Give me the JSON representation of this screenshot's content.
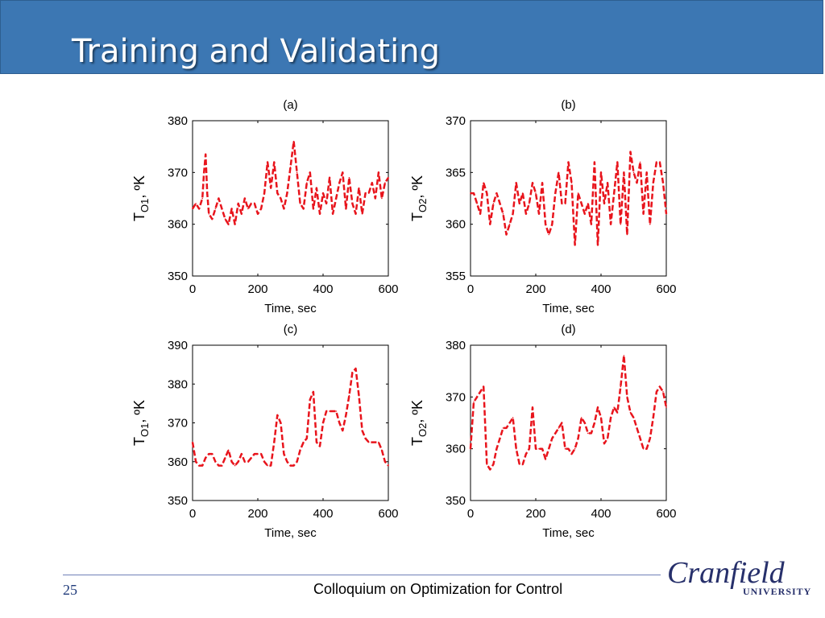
{
  "slide": {
    "title": "Training and Validating",
    "page_number": "25",
    "footer_text": "Colloquium on Optimization for Control",
    "logo": {
      "main": "Cranfield",
      "sub": "UNIVERSITY"
    },
    "colors": {
      "title_bar": "#3c77b3",
      "series_line": "#e8141c",
      "logo": "#27306b"
    }
  },
  "chart_data": [
    {
      "type": "line",
      "title": "(a)",
      "xlabel": "Time, sec",
      "ylabel": {
        "base": "T",
        "sub": "O1",
        "suffix": ", ºK"
      },
      "xlim": [
        0,
        600
      ],
      "ylim": [
        350,
        380
      ],
      "xticks": [
        0,
        200,
        400,
        600
      ],
      "yticks": [
        350,
        360,
        370,
        380
      ],
      "grid": false,
      "series": [
        {
          "style": "dashed",
          "color": "#e8141c",
          "x": [
            0,
            10,
            20,
            30,
            35,
            40,
            45,
            50,
            60,
            70,
            80,
            90,
            100,
            110,
            120,
            130,
            140,
            150,
            160,
            170,
            180,
            190,
            200,
            210,
            220,
            230,
            240,
            250,
            260,
            270,
            280,
            290,
            300,
            310,
            320,
            330,
            340,
            350,
            360,
            370,
            380,
            390,
            400,
            410,
            420,
            430,
            440,
            450,
            460,
            470,
            480,
            490,
            500,
            510,
            520,
            530,
            540,
            550,
            560,
            570,
            580,
            590,
            600
          ],
          "y": [
            363,
            364,
            363,
            365,
            370,
            373.5,
            366,
            362,
            361,
            363,
            365,
            363,
            361,
            360,
            363,
            360,
            364,
            362,
            365,
            363,
            364,
            364,
            362,
            363,
            366,
            372,
            367,
            372,
            366,
            365,
            363,
            366,
            371,
            376,
            370,
            364,
            363,
            368,
            370,
            363,
            367,
            362,
            366,
            364,
            369,
            362,
            365,
            368,
            370,
            363,
            369,
            364,
            362,
            367,
            362,
            366,
            366,
            368,
            365,
            370,
            365,
            368,
            369
          ]
        }
      ]
    },
    {
      "type": "line",
      "title": "(b)",
      "xlabel": "Time, sec",
      "ylabel": {
        "base": "T",
        "sub": "O2",
        "suffix": ", ºK"
      },
      "xlim": [
        0,
        600
      ],
      "ylim": [
        355,
        370
      ],
      "xticks": [
        0,
        200,
        400,
        600
      ],
      "yticks": [
        355,
        360,
        365,
        370
      ],
      "grid": false,
      "series": [
        {
          "style": "dashed",
          "color": "#e8141c",
          "x": [
            0,
            10,
            20,
            30,
            40,
            50,
            60,
            70,
            80,
            90,
            100,
            110,
            120,
            130,
            140,
            150,
            160,
            170,
            180,
            190,
            200,
            210,
            220,
            230,
            240,
            250,
            260,
            270,
            280,
            290,
            300,
            310,
            320,
            330,
            340,
            350,
            360,
            370,
            380,
            390,
            400,
            410,
            420,
            430,
            440,
            450,
            460,
            470,
            480,
            490,
            500,
            510,
            520,
            530,
            540,
            550,
            560,
            570,
            580,
            590,
            600
          ],
          "y": [
            363,
            363,
            362,
            361,
            364,
            363,
            360,
            362,
            363,
            362,
            361,
            359,
            360,
            361,
            364,
            362,
            363,
            361,
            362,
            364,
            363,
            361,
            364,
            360,
            359,
            360,
            363,
            365,
            362,
            362,
            366,
            364,
            358,
            363,
            362,
            361,
            362,
            360,
            366,
            358,
            365,
            362,
            364,
            360,
            363,
            366,
            360,
            365,
            359,
            367,
            365,
            364,
            366,
            361,
            365,
            360,
            364,
            366,
            366,
            364,
            361
          ]
        }
      ]
    },
    {
      "type": "line",
      "title": "(c)",
      "xlabel": "Time, sec",
      "ylabel": {
        "base": "T",
        "sub": "O1",
        "suffix": ", ºK"
      },
      "xlim": [
        0,
        600
      ],
      "ylim": [
        350,
        390
      ],
      "xticks": [
        0,
        200,
        400,
        600
      ],
      "yticks": [
        350,
        360,
        370,
        380,
        390
      ],
      "grid": false,
      "series": [
        {
          "style": "dashed",
          "color": "#e8141c",
          "x": [
            0,
            10,
            20,
            30,
            40,
            50,
            60,
            70,
            80,
            90,
            100,
            110,
            120,
            130,
            140,
            150,
            160,
            170,
            180,
            190,
            200,
            210,
            220,
            230,
            240,
            250,
            260,
            270,
            280,
            290,
            300,
            310,
            320,
            330,
            340,
            350,
            360,
            370,
            380,
            390,
            400,
            410,
            420,
            430,
            440,
            450,
            460,
            470,
            480,
            490,
            500,
            510,
            520,
            530,
            540,
            550,
            560,
            570,
            580,
            590,
            600
          ],
          "y": [
            365,
            360,
            359,
            359,
            361,
            362,
            362,
            360,
            359,
            359,
            361,
            363,
            360,
            359,
            360,
            362,
            360,
            360,
            361,
            362,
            362,
            362,
            360,
            359,
            359,
            365,
            372,
            370,
            362,
            360,
            359,
            359,
            360,
            363,
            365,
            366,
            376,
            378,
            365,
            364,
            370,
            373,
            373,
            373,
            373,
            370,
            368,
            372,
            377,
            383,
            384,
            377,
            368,
            366,
            365,
            365,
            365,
            365,
            363,
            360,
            359
          ]
        }
      ]
    },
    {
      "type": "line",
      "title": "(d)",
      "xlabel": "Time, sec",
      "ylabel": {
        "base": "T",
        "sub": "O2",
        "suffix": ", ºK"
      },
      "xlim": [
        0,
        600
      ],
      "ylim": [
        350,
        380
      ],
      "xticks": [
        0,
        200,
        400,
        600
      ],
      "yticks": [
        350,
        360,
        370,
        380
      ],
      "grid": false,
      "series": [
        {
          "style": "dashed",
          "color": "#e8141c",
          "x": [
            0,
            10,
            20,
            30,
            40,
            50,
            60,
            70,
            80,
            90,
            100,
            110,
            120,
            130,
            140,
            150,
            160,
            170,
            180,
            190,
            200,
            210,
            220,
            230,
            240,
            250,
            260,
            270,
            280,
            290,
            300,
            310,
            320,
            330,
            340,
            350,
            360,
            370,
            380,
            390,
            400,
            410,
            420,
            430,
            440,
            450,
            460,
            470,
            480,
            490,
            500,
            510,
            520,
            530,
            540,
            550,
            560,
            570,
            580,
            590,
            600
          ],
          "y": [
            360,
            369,
            370,
            371,
            372,
            357,
            356,
            357,
            360,
            362,
            364,
            364,
            365,
            366,
            360,
            357,
            357,
            359,
            360,
            368,
            360,
            360,
            360,
            358,
            360,
            362,
            363,
            364,
            365,
            360,
            360,
            359,
            360,
            362,
            366,
            365,
            363,
            363,
            365,
            368,
            366,
            361,
            362,
            366,
            368,
            367,
            372,
            378,
            370,
            367,
            366,
            364,
            362,
            360,
            360,
            362,
            366,
            371,
            372,
            371,
            368
          ]
        }
      ]
    }
  ]
}
